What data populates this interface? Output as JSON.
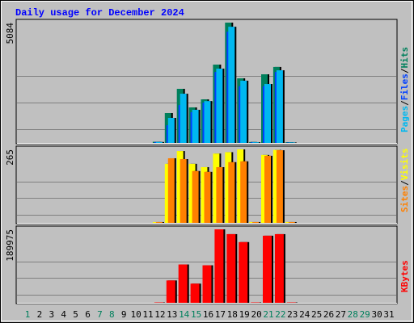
{
  "chart_data": [
    {
      "type": "bar",
      "title": "Daily usage for December 2024",
      "separator": "/",
      "series": [
        {
          "name": "Hits",
          "color": "#00805c",
          "values": [
            0,
            0,
            0,
            0,
            0,
            0,
            0,
            0,
            0,
            0,
            0,
            50,
            1262,
            2286,
            1500,
            1840,
            3310,
            5084,
            2730,
            40,
            2900,
            3210,
            30,
            0,
            0,
            0,
            0,
            0,
            0,
            0,
            0
          ]
        },
        {
          "name": "Files",
          "color": "#0040ff",
          "values": [
            0,
            0,
            0,
            0,
            0,
            0,
            0,
            0,
            0,
            0,
            0,
            40,
            750,
            1600,
            1300,
            1700,
            3000,
            4700,
            2400,
            30,
            2400,
            3000,
            20,
            0,
            0,
            0,
            0,
            0,
            0,
            0,
            0
          ]
        },
        {
          "name": "Pages",
          "color": "#00b8f0",
          "values": [
            0,
            0,
            0,
            0,
            0,
            0,
            0,
            0,
            0,
            0,
            0,
            40,
            1058,
            2080,
            1400,
            1770,
            3140,
            4910,
            2630,
            30,
            2490,
            3070,
            20,
            0,
            0,
            0,
            0,
            0,
            0,
            0,
            0
          ]
        }
      ],
      "ylim": [
        0,
        5084
      ],
      "yticks": [
        5084
      ]
    },
    {
      "type": "bar",
      "series": [
        {
          "name": "Visits",
          "color": "#ffff00",
          "values": [
            0,
            0,
            0,
            0,
            0,
            0,
            0,
            0,
            0,
            0,
            0,
            3,
            213,
            259,
            213,
            201,
            250,
            255,
            265,
            3,
            245,
            263,
            3,
            0,
            0,
            0,
            0,
            0,
            0,
            0,
            0
          ]
        },
        {
          "name": "Sites",
          "color": "#ff8000",
          "values": [
            0,
            0,
            0,
            0,
            0,
            0,
            0,
            0,
            0,
            0,
            0,
            3,
            233,
            230,
            187,
            184,
            201,
            219,
            222,
            3,
            242,
            262,
            3,
            0,
            0,
            0,
            0,
            0,
            0,
            0,
            0
          ]
        }
      ],
      "ylim": [
        0,
        265
      ],
      "yticks": [
        265
      ]
    },
    {
      "type": "bar",
      "categories": [
        "1",
        "2",
        "3",
        "4",
        "5",
        "6",
        "7",
        "8",
        "9",
        "10",
        "11",
        "12",
        "13",
        "14",
        "15",
        "16",
        "17",
        "18",
        "19",
        "20",
        "21",
        "22",
        "23",
        "24",
        "25",
        "26",
        "27",
        "28",
        "29",
        "30",
        "31"
      ],
      "weekend_indices": [
        0,
        6,
        7,
        13,
        14,
        20,
        21,
        27,
        28
      ],
      "weekend_color": "#00805c",
      "series": [
        {
          "name": "KBytes",
          "color": "#ff0000",
          "values": [
            0,
            0,
            0,
            0,
            0,
            0,
            0,
            0,
            0,
            0,
            0,
            1000,
            57800,
            99100,
            49600,
            97000,
            189975,
            177600,
            157000,
            1000,
            173500,
            177600,
            1000,
            0,
            0,
            0,
            0,
            0,
            0,
            0,
            0
          ]
        }
      ],
      "ylim": [
        0,
        189975
      ],
      "yticks": [
        189975
      ]
    }
  ]
}
